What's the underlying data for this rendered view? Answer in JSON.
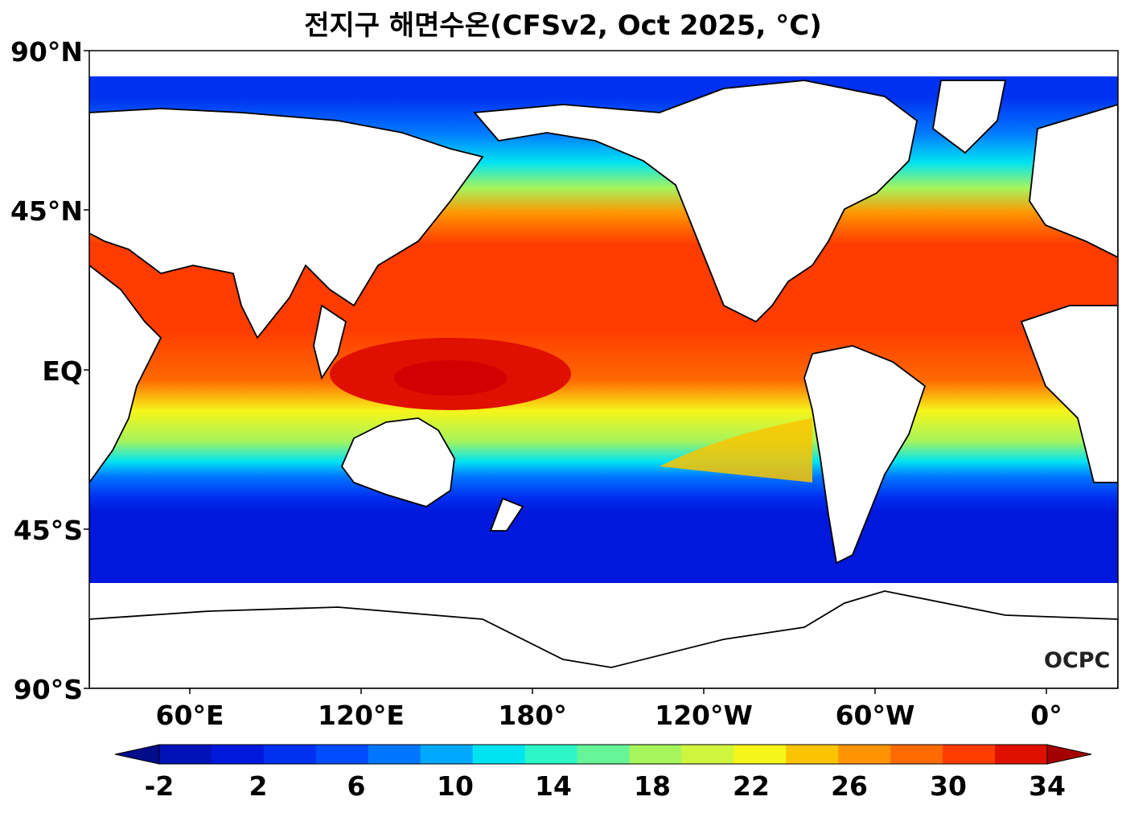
{
  "title": "전지구 해면수온(CFSv2, Oct 2025, °C)",
  "lat_labels": [
    "90°N",
    "45°N",
    "EQ",
    "45°S",
    "90°S"
  ],
  "lon_labels": [
    "60°E",
    "120°E",
    "180°",
    "120°W",
    "60°W",
    "0°"
  ],
  "colorbar": {
    "labels": [
      "-2",
      "2",
      "6",
      "10",
      "14",
      "18",
      "22",
      "26",
      "30",
      "34"
    ],
    "colors": [
      "#000c8a",
      "#0012b8",
      "#0018dc",
      "#0030f0",
      "#004cff",
      "#0076ff",
      "#00a8ff",
      "#00e4f2",
      "#2cf5c8",
      "#66f597",
      "#a6f55c",
      "#cff53c",
      "#f6f51a",
      "#fac400",
      "#ff9400",
      "#ff6a00",
      "#ff3c00",
      "#e01000",
      "#a40000"
    ]
  },
  "logo": "OCPC"
}
